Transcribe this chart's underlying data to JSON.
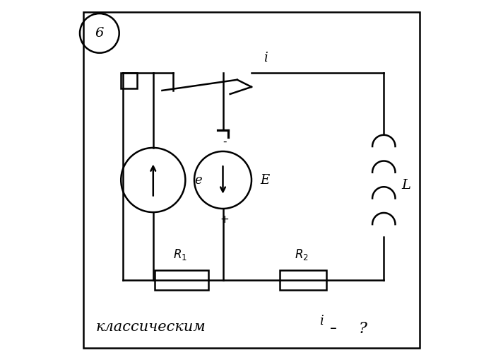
{
  "background_color": "#ffffff",
  "line_color": "#000000",
  "line_width": 1.8,
  "fig_width": 7.12,
  "fig_height": 5.09,
  "label_e": "e",
  "label_E": "E",
  "label_L": "L",
  "label_i": "i",
  "label_minus": "-",
  "label_plus": "+",
  "label_6": "6",
  "label_bottom": "классическим",
  "label_bottom_i": "i",
  "label_bottom_dash": "–",
  "label_bottom_q": "?"
}
